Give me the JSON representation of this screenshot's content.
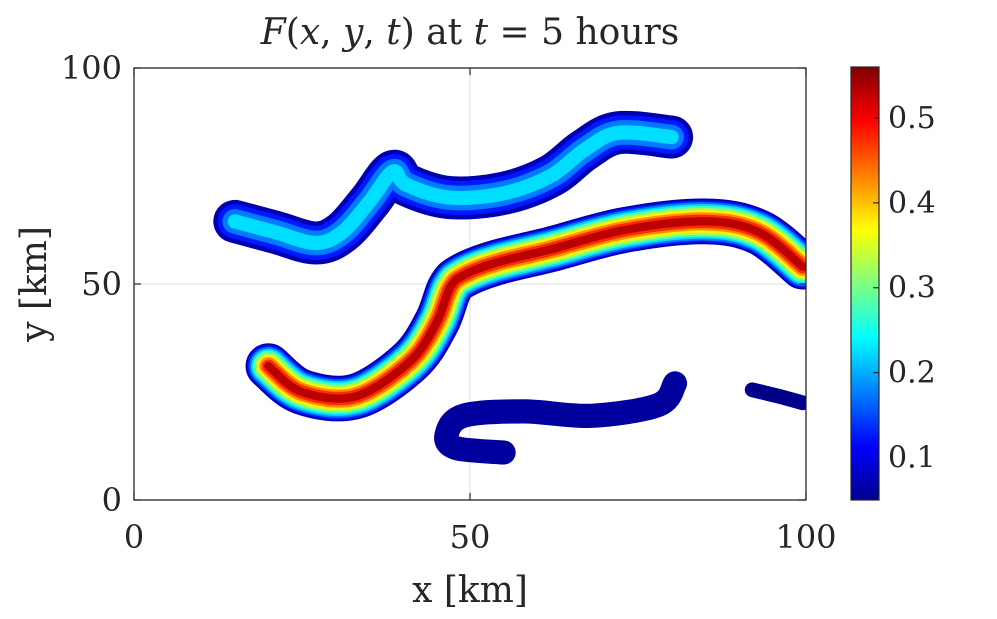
{
  "chart_data": {
    "type": "heatmap",
    "title": {
      "func": "F",
      "args_open": "(",
      "arg_x": "x",
      "comma1": ", ",
      "arg_y": "y",
      "comma2": ", ",
      "arg_t": "t",
      "args_close": ")",
      "middle": " at ",
      "t_var": "t",
      "equals": " = ",
      "suffix": "5 hours"
    },
    "xlabel": "x [km]",
    "ylabel": "y [km]",
    "xlim": [
      0,
      100
    ],
    "ylim": [
      0,
      100
    ],
    "x_ticks": [
      "0",
      "50",
      "100"
    ],
    "y_ticks": [
      "0",
      "50",
      "100"
    ],
    "grid": true,
    "colormap": "jet",
    "colorbar": {
      "range": [
        0.05,
        0.56
      ],
      "ticks": [
        "0.1",
        "0.2",
        "0.3",
        "0.4",
        "0.5"
      ],
      "tick_values": [
        0.1,
        0.2,
        0.3,
        0.4,
        0.5
      ]
    },
    "plumes": [
      {
        "name": "upper-filament",
        "width": 3.2,
        "peak": 0.25,
        "path": [
          [
            15,
            64.5
          ],
          [
            21,
            62
          ],
          [
            27,
            59.5
          ],
          [
            31,
            62
          ],
          [
            35,
            69
          ],
          [
            38.5,
            76
          ],
          [
            40.5,
            73
          ],
          [
            47,
            70
          ],
          [
            55,
            71
          ],
          [
            62,
            75
          ],
          [
            67,
            81
          ],
          [
            72,
            85
          ],
          [
            80,
            84
          ]
        ]
      },
      {
        "name": "middle-filament",
        "width": 3.4,
        "peak": 0.56,
        "path": [
          [
            20,
            31
          ],
          [
            25,
            25
          ],
          [
            33,
            24
          ],
          [
            41,
            32
          ],
          [
            45,
            41
          ],
          [
            47,
            49
          ],
          [
            49,
            52
          ],
          [
            54,
            55
          ],
          [
            62,
            58
          ],
          [
            73,
            62.5
          ],
          [
            85,
            64.5
          ],
          [
            93,
            62
          ],
          [
            99.5,
            54
          ]
        ]
      },
      {
        "name": "lower-hook",
        "width": 1.8,
        "peak": 0.08,
        "path": [
          [
            55,
            11
          ],
          [
            48,
            12
          ],
          [
            46.5,
            15
          ],
          [
            49,
            19.5
          ],
          [
            58,
            20.5
          ],
          [
            68,
            19.5
          ],
          [
            78,
            22
          ],
          [
            80.5,
            27
          ]
        ]
      },
      {
        "name": "right-sliver",
        "width": 1.1,
        "peak": 0.06,
        "path": [
          [
            92,
            25.5
          ],
          [
            96,
            24
          ],
          [
            99.5,
            22.5
          ]
        ]
      }
    ]
  },
  "colors": {
    "axis": "#262626",
    "grid": "#dcdcdc",
    "background": "#ffffff"
  }
}
